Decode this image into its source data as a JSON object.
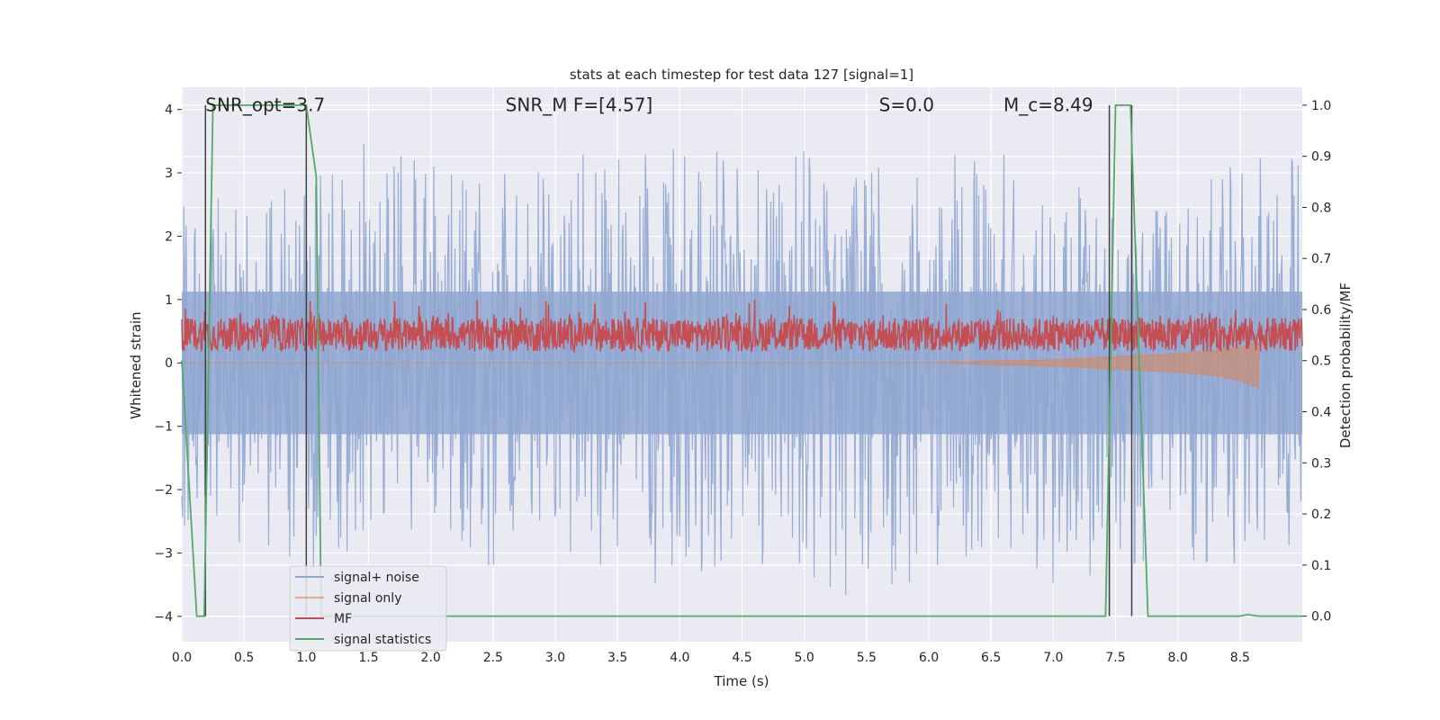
{
  "chart_data": {
    "type": "line",
    "title": "stats at each timestep for test data 127 [signal=1]",
    "xlabel": "Time (s)",
    "ylabel": "Whitened strain",
    "ylabel_right": "Detection probability/MF",
    "xlim": [
      0.0,
      9.0
    ],
    "ylim": [
      -4.4,
      4.35
    ],
    "ylim_right": [
      -0.05,
      1.035
    ],
    "x_ticks": [
      "0.0",
      "0.5",
      "1.0",
      "1.5",
      "2.0",
      "2.5",
      "3.0",
      "3.5",
      "4.0",
      "4.5",
      "5.0",
      "5.5",
      "6.0",
      "6.5",
      "7.0",
      "7.5",
      "8.0",
      "8.5"
    ],
    "y_ticks": [
      "−4",
      "−3",
      "−2",
      "−1",
      "0",
      "1",
      "2",
      "3",
      "4"
    ],
    "y_ticks_right": [
      "0.0",
      "0.1",
      "0.2",
      "0.3",
      "0.4",
      "0.5",
      "0.6",
      "0.7",
      "0.8",
      "0.9",
      "1.0"
    ],
    "grid": true,
    "legend": "lower-left",
    "annotations": [
      {
        "text": "SNR_opt=3.7",
        "x": 0.19,
        "y": 4.0
      },
      {
        "text": "SNR_M F=[4.57]",
        "x": 2.6,
        "y": 4.0
      },
      {
        "text": "S=0.0",
        "x": 5.6,
        "y": 4.0
      },
      {
        "text": "M_c=8.49",
        "x": 6.6,
        "y": 4.0
      }
    ],
    "series": [
      {
        "name": "signal+ noise",
        "axis": "left",
        "color": "#8fa6d0",
        "description": "noise band",
        "envelope_x": [
          0.0,
          0.5,
          1.0,
          1.5,
          2.0,
          2.5,
          3.0,
          3.5,
          4.0,
          4.5,
          5.0,
          5.5,
          6.0,
          6.5,
          7.0,
          7.5,
          8.0,
          8.5,
          9.0
        ],
        "upper": [
          2.6,
          2.7,
          3.0,
          3.5,
          3.2,
          2.9,
          3.5,
          3.3,
          3.9,
          3.1,
          3.4,
          3.1,
          3.2,
          3.4,
          3.3,
          2.5,
          2.6,
          3.2,
          3.4
        ],
        "lower": [
          -3.2,
          -2.8,
          -3.4,
          -3.0,
          -3.3,
          -3.2,
          -2.9,
          -3.3,
          -3.6,
          -3.2,
          -3.3,
          -3.9,
          -3.3,
          -2.9,
          -3.5,
          -3.3,
          -3.3,
          -3.2,
          -2.9
        ]
      },
      {
        "name": "signal only",
        "axis": "left",
        "color": "#dd8452",
        "x": [
          0.0,
          6.0,
          6.5,
          7.0,
          7.5,
          8.0,
          8.3,
          8.5,
          8.6,
          8.65
        ],
        "upper": [
          0,
          0,
          0.03,
          0.05,
          0.1,
          0.15,
          0.2,
          0.25,
          0.3,
          0.32
        ],
        "lower": [
          0,
          0,
          -0.03,
          -0.05,
          -0.1,
          -0.15,
          -0.2,
          -0.28,
          -0.35,
          -0.4
        ]
      },
      {
        "name": "MF",
        "axis": "right",
        "color": "#c44e52",
        "description": "oscillates between 0.50 and 0.62",
        "band": [
          0.5,
          0.62
        ]
      },
      {
        "name": "signal statistics",
        "axis": "right",
        "color": "#55a868",
        "x": [
          0.0,
          0.12,
          0.18,
          0.25,
          1.0,
          1.08,
          1.12,
          7.42,
          7.5,
          7.62,
          7.76,
          8.5,
          8.56,
          8.65,
          9.0
        ],
        "y": [
          0.5,
          0.0,
          0.0,
          1.0,
          1.0,
          0.86,
          0.0,
          0.0,
          1.0,
          1.0,
          0.0,
          0.0,
          0.003,
          0.0,
          0.0
        ]
      }
    ],
    "vlines": [
      {
        "x": 0.19,
        "color": "#404040"
      },
      {
        "x": 1.0,
        "color": "#404040"
      },
      {
        "x": 7.45,
        "color": "#404040"
      },
      {
        "x": 7.63,
        "color": "#404040"
      }
    ],
    "colors": {
      "background": "#eaeaf2",
      "grid": "#ffffff",
      "noise": "#8fa6d0",
      "signal": "#dd8452",
      "mf": "#c44e52",
      "stats": "#55a868",
      "vline": "#404040"
    }
  }
}
